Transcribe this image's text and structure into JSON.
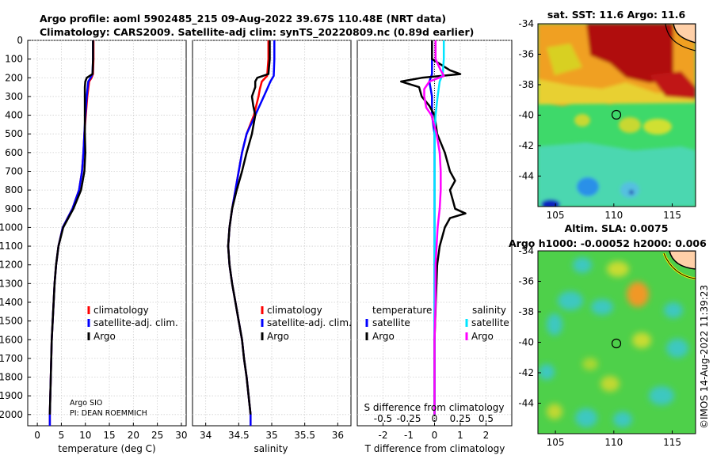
{
  "header": {
    "title_line1": "Argo profile: aoml 5902485_215 09-Aug-2022 39.67S 110.48E (NRT data)",
    "title_line2": "Climatology: CARS2009. Satellite-adj clim: synTS_20220809.nc (0.89d earlier)"
  },
  "depth_ticks": [
    "0",
    "100",
    "200",
    "300",
    "400",
    "500",
    "600",
    "700",
    "800",
    "900",
    "1000",
    "1100",
    "1200",
    "1300",
    "1400",
    "1500",
    "1600",
    "1700",
    "1800",
    "1900",
    "2000"
  ],
  "colors": {
    "climatology": "#ff0000",
    "satellite": "#0000ff",
    "argo": "#000000",
    "sat_salinity": "#00e5ff",
    "argo_salinity": "#ff00ff"
  },
  "chart_data": [
    {
      "type": "line",
      "id": "temperature",
      "xlabel": "temperature (deg C)",
      "xlim": [
        -2,
        31
      ],
      "ylim": [
        2060,
        0
      ],
      "xticks": [
        "0",
        "5",
        "10",
        "15",
        "20",
        "25",
        "30"
      ],
      "legend": [
        "climatology",
        "satellite-adj. clim.",
        "Argo"
      ],
      "legend_placement": "lower-right",
      "annotations": [
        "Argo SIO",
        "PI: DEAN ROEMMICH"
      ],
      "series": [
        {
          "name": "climatology",
          "depth": [
            0,
            100,
            180,
            200,
            220,
            300,
            400,
            500,
            600,
            700,
            800,
            900,
            1000,
            1100,
            1200,
            1300,
            1400,
            1500,
            1600,
            1700,
            1800,
            1900,
            2000,
            2060
          ],
          "values": [
            11.7,
            11.7,
            11.6,
            11.3,
            10.8,
            10.4,
            10.1,
            9.8,
            9.6,
            9.3,
            8.7,
            7.3,
            5.3,
            4.4,
            3.9,
            3.6,
            3.4,
            3.2,
            3.0,
            2.9,
            2.8,
            2.7,
            2.6,
            2.6
          ]
        },
        {
          "name": "satellite-adj. clim.",
          "depth": [
            0,
            100,
            180,
            200,
            220,
            300,
            400,
            500,
            600,
            700,
            800,
            900,
            1000,
            1100,
            1200,
            1300,
            1400,
            1500,
            1600,
            1700,
            1800,
            1900,
            2000,
            2060
          ],
          "values": [
            11.6,
            11.6,
            11.5,
            11.1,
            10.6,
            10.3,
            10.0,
            9.8,
            9.6,
            9.3,
            8.7,
            7.3,
            5.3,
            4.4,
            3.9,
            3.6,
            3.4,
            3.2,
            3.0,
            2.9,
            2.8,
            2.7,
            2.6,
            2.6
          ]
        },
        {
          "name": "Argo",
          "depth": [
            0,
            100,
            180,
            200,
            220,
            250,
            300,
            400,
            500,
            600,
            700,
            800,
            900,
            1000,
            1100,
            1200,
            1300,
            1400,
            1500,
            1600,
            1700,
            1800,
            1900,
            2000
          ],
          "values": [
            11.6,
            11.6,
            11.5,
            10.3,
            10.0,
            9.9,
            9.9,
            9.9,
            9.9,
            10.0,
            9.8,
            9.1,
            7.5,
            5.4,
            4.4,
            3.9,
            3.6,
            3.4,
            3.2,
            3.0,
            2.9,
            2.8,
            2.7,
            2.6
          ]
        }
      ]
    },
    {
      "type": "line",
      "id": "salinity",
      "xlabel": "salinity",
      "xticks": [
        "34",
        "34.5",
        "35",
        "35.5",
        "36"
      ],
      "xlim": [
        33.8,
        36.2
      ],
      "ylim": [
        2060,
        0
      ],
      "legend": [
        "climatology",
        "satellite-adj. clim.",
        "Argo"
      ],
      "legend_placement": "lower-right",
      "series": [
        {
          "name": "climatology",
          "depth": [
            0,
            100,
            190,
            220,
            260,
            300,
            400,
            500,
            600,
            700,
            800,
            900,
            1000,
            1100,
            1200,
            1300,
            1400,
            1500,
            1600,
            1700,
            1800,
            1900,
            2000,
            2060
          ],
          "values": [
            34.95,
            34.95,
            34.93,
            34.85,
            34.82,
            34.8,
            34.73,
            34.62,
            34.55,
            34.5,
            34.45,
            34.4,
            34.36,
            34.34,
            34.36,
            34.4,
            34.45,
            34.5,
            34.55,
            34.58,
            34.62,
            34.65,
            34.68,
            34.68
          ]
        },
        {
          "name": "satellite-adj. clim.",
          "depth": [
            0,
            100,
            190,
            220,
            260,
            300,
            400,
            500,
            600,
            700,
            800,
            900,
            1000,
            1100,
            1200,
            1300,
            1400,
            1500,
            1600,
            1700,
            1800,
            1900,
            2000,
            2060
          ],
          "values": [
            35.04,
            35.04,
            35.03,
            34.98,
            34.93,
            34.88,
            34.75,
            34.62,
            34.55,
            34.5,
            34.45,
            34.4,
            34.36,
            34.34,
            34.36,
            34.4,
            34.45,
            34.5,
            34.55,
            34.58,
            34.62,
            34.65,
            34.68,
            34.68
          ]
        },
        {
          "name": "Argo",
          "depth": [
            0,
            100,
            180,
            200,
            220,
            250,
            300,
            350,
            400,
            500,
            600,
            700,
            800,
            900,
            1000,
            1100,
            1200,
            1300,
            1400,
            1500,
            1600,
            1700,
            1800,
            1900,
            2000
          ],
          "values": [
            34.97,
            34.97,
            34.95,
            34.78,
            34.75,
            34.75,
            34.7,
            34.72,
            34.75,
            34.7,
            34.62,
            34.55,
            34.47,
            34.4,
            34.36,
            34.34,
            34.36,
            34.4,
            34.45,
            34.5,
            34.55,
            34.58,
            34.62,
            34.65,
            34.68
          ]
        }
      ]
    },
    {
      "type": "line",
      "id": "difference",
      "xlabel": "T difference from climatology",
      "xlabel_top": "S difference from climatology",
      "xticks": [
        "-2",
        "-1",
        "0",
        "1",
        "2"
      ],
      "xticks_top": [
        "-0.5",
        "-0.25",
        "0",
        "0.25",
        "0.5"
      ],
      "xlim": [
        -3,
        3
      ],
      "ylim": [
        2060,
        0
      ],
      "legend": [
        "temperature",
        "satellite",
        "Argo",
        "salinity",
        "satellite",
        "Argo"
      ],
      "legend_placement": "lower",
      "series": [
        {
          "name": "temperature satellite",
          "depth": [
            0,
            100,
            180,
            220,
            300,
            400,
            500,
            700,
            900,
            1000,
            1200,
            1500,
            1800,
            2000
          ],
          "values": [
            -0.1,
            -0.1,
            -0.1,
            -0.2,
            -0.1,
            -0.1,
            0,
            0,
            0,
            0,
            0,
            0,
            0,
            0
          ]
        },
        {
          "name": "temperature Argo",
          "depth": [
            0,
            100,
            160,
            180,
            200,
            220,
            250,
            300,
            350,
            400,
            500,
            600,
            700,
            750,
            800,
            850,
            900,
            925,
            950,
            1000,
            1100,
            1200,
            1400,
            1600,
            1800,
            2000
          ],
          "values": [
            -0.1,
            -0.1,
            0.6,
            1.0,
            -0.5,
            -1.3,
            -0.6,
            -0.5,
            -0.2,
            0,
            0.1,
            0.4,
            0.6,
            0.8,
            0.6,
            0.7,
            0.8,
            1.2,
            0.6,
            0.4,
            0.2,
            0.1,
            0.05,
            0,
            0,
            0
          ]
        },
        {
          "name": "salinity satellite",
          "depth": [
            0,
            100,
            180,
            220,
            300,
            400,
            500,
            600,
            800,
            1000,
            1200,
            1500,
            1800,
            2000
          ],
          "values": [
            0.09,
            0.09,
            0.08,
            0.05,
            0.03,
            0.01,
            0,
            0,
            0,
            0,
            0,
            0,
            0,
            0
          ]
        },
        {
          "name": "salinity Argo",
          "depth": [
            0,
            100,
            160,
            190,
            220,
            260,
            300,
            360,
            400,
            500,
            600,
            700,
            800,
            900,
            1000,
            1100,
            1200,
            1400,
            1600,
            1800,
            2000
          ],
          "values": [
            0.01,
            0.01,
            0.06,
            0.09,
            -0.05,
            -0.1,
            -0.1,
            -0.08,
            -0.03,
            0.02,
            0.05,
            0.06,
            0.06,
            0.05,
            0.03,
            0.02,
            0.01,
            0.01,
            0,
            0,
            0
          ]
        }
      ]
    },
    {
      "type": "heatmap",
      "id": "sst-map",
      "title": "sat. SST: 11.6 Argo: 11.6",
      "xlim": [
        103.5,
        117
      ],
      "ylim": [
        -46,
        -34
      ],
      "xticks": [
        "105",
        "110",
        "115"
      ],
      "yticks": [
        "-34",
        "-36",
        "-38",
        "-40",
        "-42",
        "-44"
      ],
      "marker": {
        "lon": 110.48,
        "lat": -39.67
      }
    },
    {
      "type": "heatmap",
      "id": "sla-map",
      "title": "Altim. SLA: 0.0075",
      "subtitle": "Argo h1000: -0.00052 h2000: 0.006",
      "xlim": [
        103.5,
        117
      ],
      "ylim": [
        -46,
        -34
      ],
      "xticks": [
        "105",
        "110",
        "115"
      ],
      "yticks": [
        "-34",
        "-36",
        "-38",
        "-40",
        "-42",
        "-44"
      ],
      "marker": {
        "lon": 110.48,
        "lat": -39.67
      }
    }
  ],
  "footer": {
    "copyright": "©IMOS 14-Aug-2022 11:39:23"
  }
}
